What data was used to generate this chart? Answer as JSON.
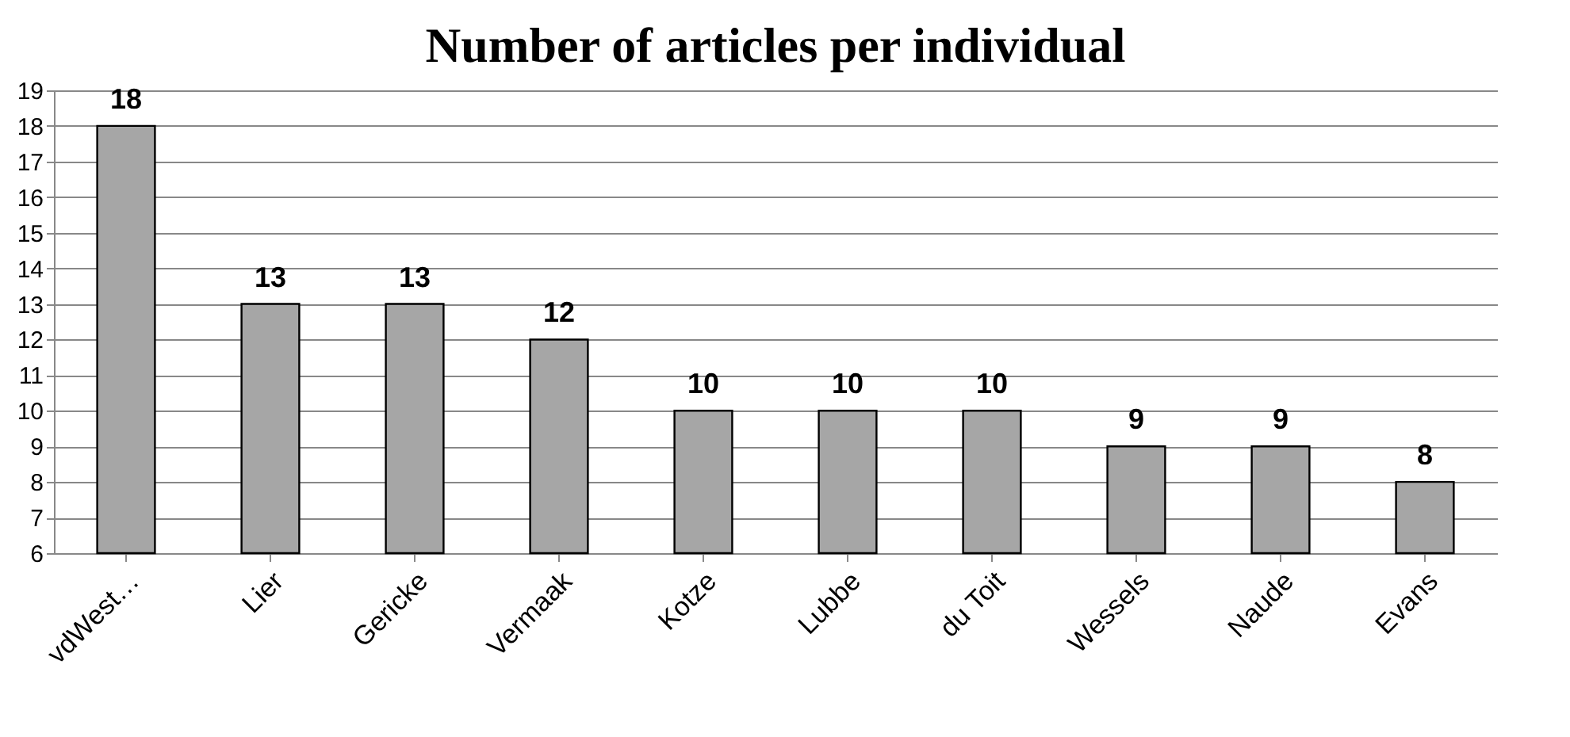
{
  "chart_data": {
    "type": "bar",
    "title": "Number of articles per individual",
    "categories": [
      "vdWest…",
      "Lier",
      "Gericke",
      "Vermaak",
      "Kotze",
      "Lubbe",
      "du Toit",
      "Wessels",
      "Naude",
      "Evans"
    ],
    "values": [
      18,
      13,
      13,
      12,
      10,
      10,
      10,
      9,
      9,
      8
    ],
    "color": "#a6a6a6",
    "ylim": [
      6,
      19
    ],
    "yticks": [
      6,
      7,
      8,
      9,
      10,
      11,
      12,
      13,
      14,
      15,
      16,
      17,
      18,
      19
    ],
    "grid": "y",
    "data_labels": true
  }
}
